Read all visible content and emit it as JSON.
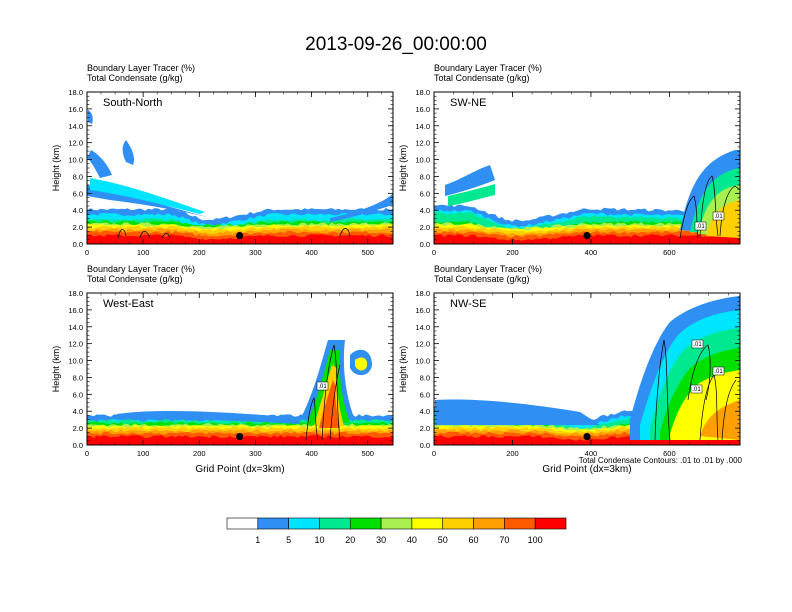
{
  "title": "2013-09-26_00:00:00",
  "panel_labels": {
    "left": "Boundary Layer Tracer   (%)",
    "right": "Total Condensate   (g/kg)"
  },
  "colors": {
    "levels": [
      "#ffffff",
      "#2f8ff2",
      "#00e5ff",
      "#00e890",
      "#00e000",
      "#a8f050",
      "#ffff00",
      "#ffd000",
      "#ffa000",
      "#ff5a00",
      "#ff0000"
    ],
    "contour": "#000000",
    "marker": "#000000"
  },
  "colorbar": {
    "labels": [
      "1",
      "5",
      "10",
      "20",
      "30",
      "40",
      "50",
      "60",
      "70",
      "100"
    ]
  },
  "footnote": "Total Condensate Contours: .01 to .01 by .000",
  "chart_data": [
    {
      "type": "heatmap",
      "name": "South-North",
      "ylabel": "Height (km)",
      "xlabel": "",
      "xlim": [
        0,
        545
      ],
      "xticks": [
        "0",
        "100",
        "200",
        "300",
        "400",
        "500"
      ],
      "ylim": [
        0,
        18
      ],
      "yticks": [
        "0.0",
        "2.0",
        "4.0",
        "6.0",
        "8.0",
        "10.0",
        "12.0",
        "14.0",
        "16.0",
        "18.0"
      ],
      "marker_x": 272,
      "marker_z": 1.0,
      "contour_labels": []
    },
    {
      "type": "heatmap",
      "name": "SW-NE",
      "ylabel": "Height (km)",
      "xlabel": "",
      "xlim": [
        0,
        780
      ],
      "xticks": [
        "0",
        "200",
        "400",
        "600"
      ],
      "ylim": [
        0,
        18
      ],
      "yticks": [
        "0.0",
        "2.0",
        "4.0",
        "6.0",
        "8.0",
        "10.0",
        "12.0",
        "14.0",
        "16.0",
        "18.0"
      ],
      "marker_x": 390,
      "marker_z": 1.0,
      "contour_labels": [
        ".01",
        ".01"
      ]
    },
    {
      "type": "heatmap",
      "name": "West-East",
      "ylabel": "Height (km)",
      "xlabel": "Grid Point (dx=3km)",
      "xlim": [
        0,
        545
      ],
      "xticks": [
        "0",
        "100",
        "200",
        "300",
        "400",
        "500"
      ],
      "ylim": [
        0,
        18
      ],
      "yticks": [
        "0.0",
        "2.0",
        "4.0",
        "6.0",
        "8.0",
        "10.0",
        "12.0",
        "14.0",
        "16.0",
        "18.0"
      ],
      "marker_x": 272,
      "marker_z": 1.0,
      "contour_labels": [
        ".01"
      ]
    },
    {
      "type": "heatmap",
      "name": "NW-SE",
      "ylabel": "Height (km)",
      "xlabel": "Grid Point (dx=3km)",
      "xlim": [
        0,
        780
      ],
      "xticks": [
        "0",
        "200",
        "400",
        "600"
      ],
      "ylim": [
        0,
        18
      ],
      "yticks": [
        "0.0",
        "2.0",
        "4.0",
        "6.0",
        "8.0",
        "10.0",
        "12.0",
        "14.0",
        "16.0",
        "18.0"
      ],
      "marker_x": 390,
      "marker_z": 1.0,
      "contour_labels": [
        ".01",
        ".01",
        ".01"
      ]
    }
  ]
}
